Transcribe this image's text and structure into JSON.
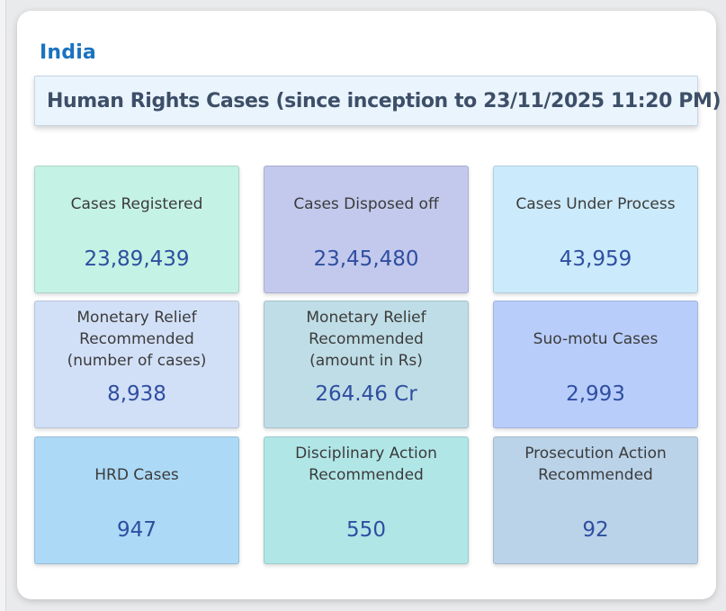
{
  "region": "India",
  "title": "Human Rights Cases (since inception to 23/11/2025 11:20 PM)",
  "tiles": [
    {
      "label": "Cases Registered",
      "value": "23,89,439",
      "color": "#c4f2e4"
    },
    {
      "label": "Cases Disposed off",
      "value": "23,45,480",
      "color": "#c2c9ec"
    },
    {
      "label": "Cases Under Process",
      "value": "43,959",
      "color": "#cbeafb"
    },
    {
      "label": "Monetary Relief\nRecommended\n(number of cases)",
      "value": "8,938",
      "color": "#d2e0f7"
    },
    {
      "label": "Monetary Relief\nRecommended\n(amount in Rs)",
      "value": "264.46 Cr",
      "color": "#bfdde6"
    },
    {
      "label": "Suo-motu Cases",
      "value": "2,993",
      "color": "#b8cdfa"
    },
    {
      "label": "HRD Cases",
      "value": "947",
      "color": "#acd9f6"
    },
    {
      "label": "Disciplinary Action\nRecommended",
      "value": "550",
      "color": "#b1e6e7"
    },
    {
      "label": "Prosecution Action\nRecommended",
      "value": "92",
      "color": "#bad3e9"
    }
  ]
}
